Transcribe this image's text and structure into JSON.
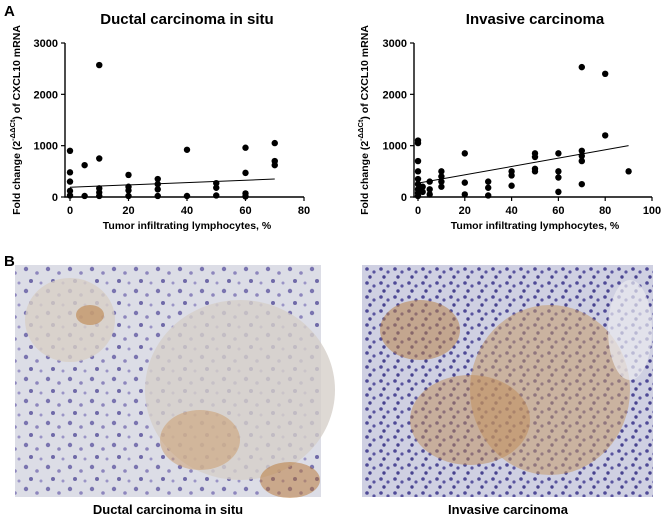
{
  "panel_labels": [
    "A",
    "B"
  ],
  "chart_data": [
    {
      "type": "scatter",
      "title": "Ductal carcinoma in situ",
      "xlabel": "Tumor infiltrating lymphocytes, %",
      "ylabel": {
        "start": "Fold change (2",
        "superscript": "-ΔΔCt",
        "end": ") of CXCL10 mRNA"
      },
      "color": "#000000",
      "x": [
        0,
        0,
        0,
        0,
        0,
        5,
        5,
        10,
        10,
        10,
        10,
        10,
        20,
        20,
        20,
        20,
        30,
        30,
        30,
        30,
        40,
        40,
        50,
        50,
        50,
        60,
        60,
        60,
        60,
        70,
        70,
        70
      ],
      "values": [
        900,
        480,
        300,
        120,
        30,
        620,
        20,
        2570,
        750,
        170,
        90,
        20,
        430,
        200,
        130,
        20,
        350,
        250,
        150,
        20,
        920,
        20,
        270,
        180,
        30,
        960,
        470,
        70,
        10,
        1050,
        700,
        620
      ],
      "trendline": {
        "x": [
          0,
          70
        ],
        "y": [
          190,
          350
        ]
      },
      "xlim": [
        0,
        80
      ],
      "ylim": [
        0,
        3000
      ],
      "xticks": [
        0,
        20,
        40,
        60,
        80
      ],
      "yticks": [
        0,
        1000,
        2000,
        3000
      ]
    },
    {
      "type": "scatter",
      "title": "Invasive carcinoma",
      "xlabel": "Tumor infiltrating lymphocytes, %",
      "ylabel": {
        "start": "Fold change (2",
        "superscript": "-ΔΔCt",
        "end": ") of CXCL10 mRNA"
      },
      "color": "#000000",
      "x": [
        0,
        0,
        0,
        0,
        0,
        0,
        0,
        0,
        0,
        2,
        2,
        5,
        5,
        5,
        10,
        10,
        10,
        10,
        20,
        20,
        20,
        30,
        30,
        30,
        40,
        40,
        40,
        50,
        50,
        50,
        50,
        60,
        60,
        60,
        60,
        70,
        70,
        70,
        70,
        70,
        80,
        80,
        90
      ],
      "values": [
        1100,
        1050,
        700,
        500,
        350,
        250,
        150,
        80,
        20,
        200,
        100,
        300,
        150,
        50,
        500,
        400,
        300,
        200,
        850,
        280,
        50,
        300,
        180,
        30,
        500,
        420,
        220,
        850,
        780,
        550,
        500,
        850,
        500,
        380,
        100,
        2530,
        900,
        800,
        700,
        250,
        2400,
        1200,
        500
      ],
      "trendline": {
        "x": [
          0,
          90
        ],
        "y": [
          270,
          1000
        ]
      },
      "xlim": [
        0,
        100
      ],
      "ylim": [
        0,
        3000
      ],
      "xticks": [
        0,
        20,
        40,
        60,
        80,
        100
      ],
      "yticks": [
        0,
        1000,
        2000,
        3000
      ]
    }
  ],
  "captions": [
    "Ductal carcinoma in situ",
    "Invasive carcinoma"
  ]
}
